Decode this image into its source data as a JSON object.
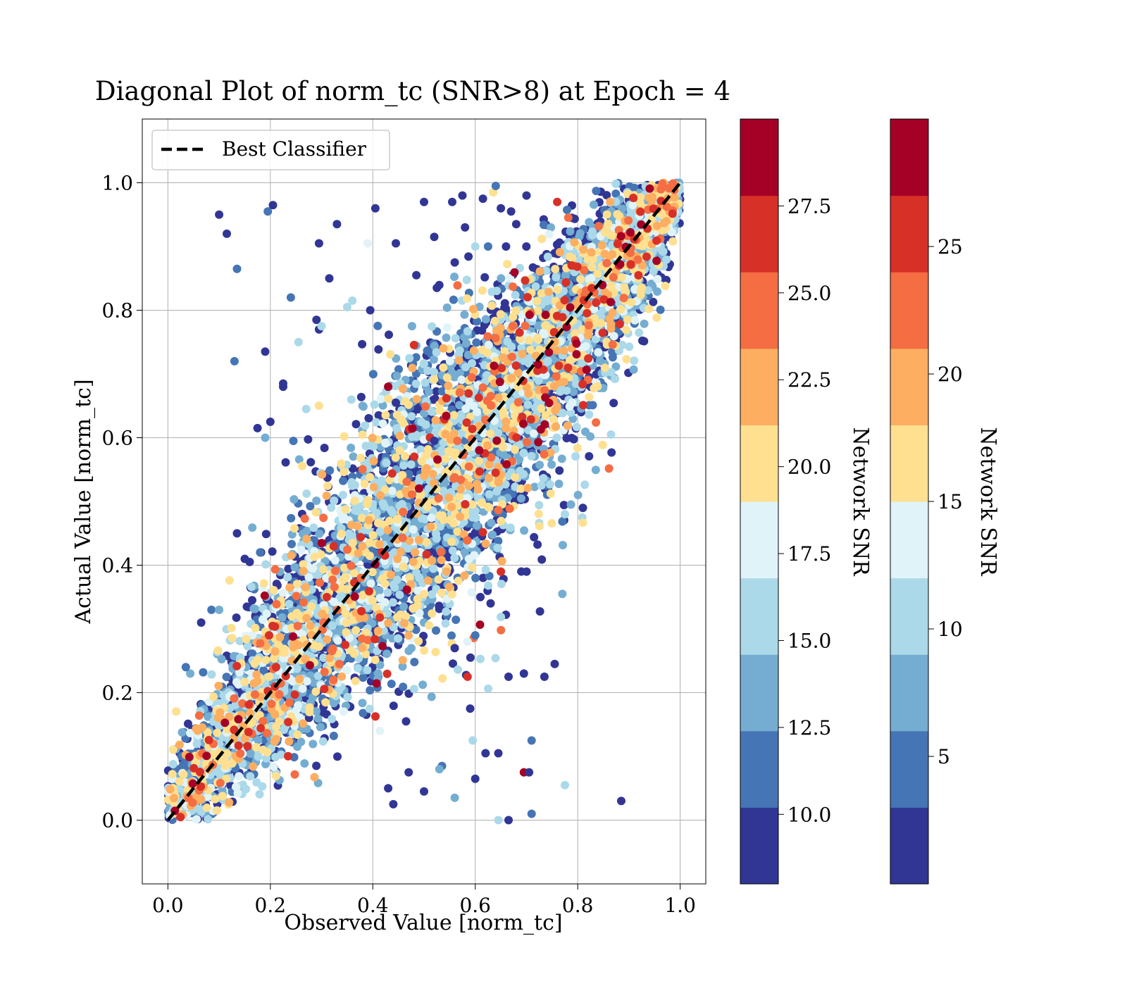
{
  "chart_data": {
    "type": "scatter",
    "title": "Diagonal Plot of norm_tc (SNR>8) at Epoch = 4",
    "xlabel": "Observed Value [norm_tc]",
    "ylabel": "Actual Value [norm_tc]",
    "xlim": [
      -0.05,
      1.05
    ],
    "ylim": [
      -0.1,
      1.1
    ],
    "x_ticks": [
      "0.0",
      "0.2",
      "0.4",
      "0.6",
      "0.8",
      "1.0"
    ],
    "y_ticks": [
      "0.0",
      "0.2",
      "0.4",
      "0.6",
      "0.8",
      "1.0"
    ],
    "grid": true,
    "legend": {
      "placement": "top-left",
      "entries": [
        "Best Classifier"
      ]
    },
    "reference_line": {
      "name": "Best Classifier",
      "x": [
        0,
        1
      ],
      "y": [
        0,
        1
      ],
      "style": "dashed",
      "color": "#000000"
    },
    "colorbars": [
      {
        "label": "Network SNR",
        "range": [
          8,
          30
        ],
        "tick_values": [
          10,
          12.5,
          15,
          17.5,
          20,
          22.5,
          25,
          27.5
        ],
        "tick_labels": [
          "10.0",
          "12.5",
          "15.0",
          "17.5",
          "20.0",
          "22.5",
          "25.0",
          "27.5"
        ]
      },
      {
        "label": "Network SNR",
        "range": [
          0,
          30
        ],
        "tick_values": [
          5,
          10,
          15,
          20,
          25
        ],
        "tick_labels": [
          "5",
          "10",
          "15",
          "20",
          "25"
        ]
      }
    ],
    "colormap": [
      "#313695",
      "#4575b4",
      "#74add1",
      "#abd9e9",
      "#e0f3f8",
      "#fee090",
      "#fdae61",
      "#f46d43",
      "#d73027",
      "#a50026"
    ],
    "outliers": [
      [
        0.1,
        0.95,
        9
      ],
      [
        0.115,
        0.92,
        9
      ],
      [
        0.135,
        0.865,
        12
      ],
      [
        0.195,
        0.955,
        11
      ],
      [
        0.205,
        0.965,
        9
      ],
      [
        0.33,
        0.935,
        9
      ],
      [
        0.295,
        0.905,
        9
      ],
      [
        0.39,
        0.905,
        18
      ],
      [
        0.405,
        0.96,
        9
      ],
      [
        0.445,
        0.905,
        9
      ],
      [
        0.315,
        0.85,
        9
      ],
      [
        0.24,
        0.82,
        11
      ],
      [
        0.35,
        0.805,
        15
      ],
      [
        0.36,
        0.815,
        15
      ],
      [
        0.395,
        0.8,
        9
      ],
      [
        0.29,
        0.785,
        9
      ],
      [
        0.295,
        0.77,
        9
      ],
      [
        0.3,
        0.775,
        15
      ],
      [
        0.255,
        0.75,
        16
      ],
      [
        0.19,
        0.735,
        9
      ],
      [
        0.13,
        0.72,
        11
      ],
      [
        0.225,
        0.685,
        9
      ],
      [
        0.225,
        0.68,
        9
      ],
      [
        0.27,
        0.645,
        16
      ],
      [
        0.2,
        0.625,
        9
      ],
      [
        0.175,
        0.615,
        9
      ],
      [
        0.19,
        0.6,
        13
      ],
      [
        0.245,
        0.595,
        11
      ],
      [
        0.43,
        0.68,
        28
      ],
      [
        0.485,
        0.855,
        9
      ],
      [
        0.52,
        0.915,
        9
      ],
      [
        0.5,
        0.97,
        9
      ],
      [
        0.555,
        0.97,
        9
      ],
      [
        0.575,
        0.98,
        9
      ],
      [
        0.615,
        0.975,
        9
      ],
      [
        0.635,
        0.985,
        21
      ],
      [
        0.65,
        0.96,
        9
      ],
      [
        0.625,
        0.9,
        11
      ],
      [
        0.58,
        0.93,
        9
      ],
      [
        0.56,
        0.875,
        9
      ],
      [
        0.64,
        0.995,
        11
      ],
      [
        0.67,
        0.955,
        9
      ],
      [
        0.68,
        0.935,
        9
      ],
      [
        0.76,
        0.97,
        27
      ],
      [
        0.7,
        0.98,
        9
      ],
      [
        0.525,
        0.835,
        9
      ],
      [
        0.6,
        0.9,
        15
      ],
      [
        0.66,
        0.9,
        9
      ],
      [
        0.565,
        0.595,
        25
      ],
      [
        0.52,
        0.595,
        9
      ],
      [
        0.445,
        0.655,
        9
      ],
      [
        0.38,
        0.65,
        13
      ],
      [
        0.77,
        0.355,
        13
      ],
      [
        0.585,
        0.225,
        26
      ],
      [
        0.59,
        0.175,
        9
      ],
      [
        0.595,
        0.125,
        15
      ],
      [
        0.62,
        0.105,
        9
      ],
      [
        0.645,
        0.105,
        9
      ],
      [
        0.665,
        0.225,
        9
      ],
      [
        0.695,
        0.23,
        9
      ],
      [
        0.735,
        0.225,
        9
      ],
      [
        0.755,
        0.245,
        9
      ],
      [
        0.695,
        0.075,
        28
      ],
      [
        0.705,
        0.075,
        9
      ],
      [
        0.71,
        0.125,
        11
      ],
      [
        0.775,
        0.055,
        15
      ],
      [
        0.885,
        0.03,
        9
      ],
      [
        0.71,
        0.01,
        11
      ],
      [
        0.665,
        0.0,
        9
      ],
      [
        0.645,
        0.0,
        15
      ],
      [
        0.6,
        0.065,
        9
      ],
      [
        0.56,
        0.035,
        14
      ],
      [
        0.535,
        0.085,
        11
      ],
      [
        0.53,
        0.08,
        13
      ],
      [
        0.5,
        0.045,
        9
      ],
      [
        0.47,
        0.075,
        9
      ],
      [
        0.465,
        0.155,
        9
      ],
      [
        0.44,
        0.025,
        9
      ],
      [
        0.43,
        0.05,
        9
      ],
      [
        0.56,
        0.27,
        9
      ],
      [
        0.6,
        0.29,
        11
      ],
      [
        0.585,
        0.28,
        17
      ],
      [
        0.61,
        0.35,
        9
      ],
      [
        0.63,
        0.34,
        9
      ],
      [
        0.65,
        0.39,
        26
      ],
      [
        0.7,
        0.39,
        9
      ],
      [
        0.775,
        0.48,
        16
      ],
      [
        0.81,
        0.49,
        9
      ],
      [
        0.865,
        0.605,
        16
      ],
      [
        0.035,
        0.24,
        11
      ],
      [
        0.065,
        0.31,
        9
      ],
      [
        0.085,
        0.33,
        11
      ],
      [
        0.1,
        0.33,
        13
      ],
      [
        0.135,
        0.45,
        9
      ],
      [
        0.15,
        0.41,
        9
      ],
      [
        0.18,
        0.42,
        11
      ]
    ]
  }
}
